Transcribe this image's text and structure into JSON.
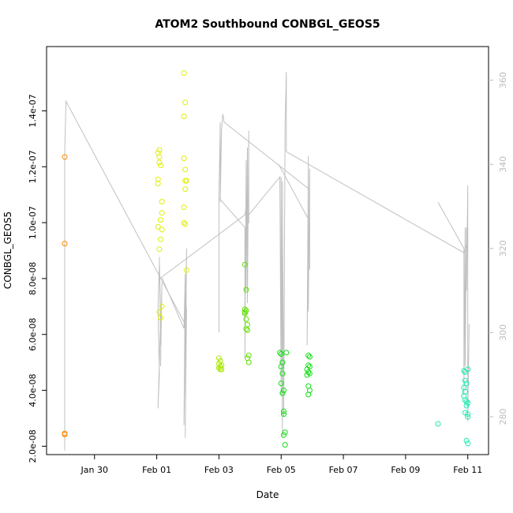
{
  "chart_data": {
    "type": "scatter",
    "title": "ATOM2 Southbound CONBGL_GEOS5",
    "xlabel": "Date",
    "ylabel": "CONBGL_GEOS5",
    "xlim": [
      "2016-01-28T11:00",
      "2016-02-11T16:00"
    ],
    "ylim": [
      1.7e-08,
      1.63e-07
    ],
    "y2lim": [
      271,
      368
    ],
    "x_ticks": [
      {
        "date": "2016-01-30",
        "label": "Jan 30"
      },
      {
        "date": "2016-02-01",
        "label": "Feb 01"
      },
      {
        "date": "2016-02-03",
        "label": "Feb 03"
      },
      {
        "date": "2016-02-05",
        "label": "Feb 05"
      },
      {
        "date": "2016-02-07",
        "label": "Feb 07"
      },
      {
        "date": "2016-02-09",
        "label": "Feb 09"
      },
      {
        "date": "2016-02-11",
        "label": "Feb 11"
      }
    ],
    "y_ticks": [
      {
        "value": 2e-08,
        "label": "2.0e-08"
      },
      {
        "value": 4e-08,
        "label": "4.0e-08"
      },
      {
        "value": 6e-08,
        "label": "6.0e-08"
      },
      {
        "value": 8e-08,
        "label": "8.0e-08"
      },
      {
        "value": 1e-07,
        "label": "1.0e-07"
      },
      {
        "value": 1.2e-07,
        "label": "1.2e-07"
      },
      {
        "value": 1.4e-07,
        "label": "1.4e-07"
      }
    ],
    "y2_ticks": [
      {
        "value": 280,
        "label": "280"
      },
      {
        "value": 300,
        "label": "300"
      },
      {
        "value": 320,
        "label": "320"
      },
      {
        "value": 340,
        "label": "340"
      },
      {
        "value": 360,
        "label": "360"
      }
    ],
    "grid": false,
    "legend": "none",
    "line_color": "#c0c0c0",
    "series": [
      {
        "color": "#ff8c00",
        "points": [
          [
            "2016-01-29T01:00",
            1.235e-07
          ],
          [
            "2016-01-29T01:00",
            9.25e-08
          ],
          [
            "2016-01-29T01:00",
            2.46e-08
          ],
          [
            "2016-01-29T01:00",
            2.42e-08
          ]
        ]
      },
      {
        "color": "#e0f000",
        "points": [
          [
            "2016-02-01T01:00",
            1.25e-07
          ],
          [
            "2016-02-01T02:00",
            1.26e-07
          ],
          [
            "2016-02-01T02:00",
            1.235e-07
          ],
          [
            "2016-02-01T02:00",
            1.215e-07
          ],
          [
            "2016-02-01T03:00",
            1.205e-07
          ],
          [
            "2016-02-01T01:00",
            1.155e-07
          ],
          [
            "2016-02-01T01:00",
            1.14e-07
          ],
          [
            "2016-02-01T04:00",
            1.075e-07
          ],
          [
            "2016-02-01T04:00",
            1.035e-07
          ],
          [
            "2016-02-01T03:00",
            1.01e-07
          ],
          [
            "2016-02-01T01:00",
            9.85e-08
          ],
          [
            "2016-02-01T04:00",
            9.75e-08
          ],
          [
            "2016-02-01T03:00",
            9.4e-08
          ],
          [
            "2016-02-01T02:00",
            9.05e-08
          ],
          [
            "2016-02-01T04:00",
            7e-08
          ],
          [
            "2016-02-01T02:00",
            6.8e-08
          ],
          [
            "2016-02-01T03:00",
            6.6e-08
          ],
          [
            "2016-02-01T21:00",
            1.535e-07
          ],
          [
            "2016-02-01T22:00",
            1.43e-07
          ],
          [
            "2016-02-01T21:00",
            1.38e-07
          ],
          [
            "2016-02-01T21:00",
            1.23e-07
          ],
          [
            "2016-02-01T22:00",
            1.19e-07
          ],
          [
            "2016-02-01T23:00",
            1.15e-07
          ],
          [
            "2016-02-01T22:00",
            1.15e-07
          ],
          [
            "2016-02-01T22:00",
            1.12e-07
          ],
          [
            "2016-02-01T21:00",
            1.055e-07
          ],
          [
            "2016-02-01T21:00",
            1e-07
          ],
          [
            "2016-02-01T22:00",
            9.95e-08
          ],
          [
            "2016-02-01T23:00",
            8.3e-08
          ]
        ]
      },
      {
        "color": "#a8e800",
        "points": [
          [
            "2016-02-03T00:00",
            5.15e-08
          ],
          [
            "2016-02-03T01:00",
            5.05e-08
          ],
          [
            "2016-02-03T00:00",
            4.95e-08
          ],
          [
            "2016-02-03T02:00",
            4.9e-08
          ],
          [
            "2016-02-03T00:00",
            4.8e-08
          ],
          [
            "2016-02-03T01:00",
            4.75e-08
          ],
          [
            "2016-02-03T02:00",
            4.75e-08
          ],
          [
            "2016-02-03T01:00",
            4.85e-08
          ]
        ]
      },
      {
        "color": "#60e000",
        "points": [
          [
            "2016-02-03T20:00",
            8.5e-08
          ],
          [
            "2016-02-03T21:00",
            7.6e-08
          ],
          [
            "2016-02-03T20:00",
            6.9e-08
          ],
          [
            "2016-02-03T21:00",
            6.85e-08
          ],
          [
            "2016-02-03T20:00",
            6.75e-08
          ],
          [
            "2016-02-03T21:00",
            6.55e-08
          ],
          [
            "2016-02-03T22:00",
            6.35e-08
          ],
          [
            "2016-02-03T21:00",
            6.2e-08
          ],
          [
            "2016-02-03T22:00",
            6.15e-08
          ],
          [
            "2016-02-03T23:00",
            5.25e-08
          ],
          [
            "2016-02-03T22:00",
            5.15e-08
          ],
          [
            "2016-02-03T23:00",
            5e-08
          ],
          [
            "2016-02-03T20:00",
            6.8e-08
          ]
        ]
      },
      {
        "color": "#10e010",
        "points": [
          [
            "2016-02-04T23:00",
            5.35e-08
          ],
          [
            "2016-02-05T00:00",
            5.3e-08
          ],
          [
            "2016-02-05T04:00",
            5.35e-08
          ],
          [
            "2016-02-05T01:00",
            5e-08
          ],
          [
            "2016-02-05T00:00",
            4.85e-08
          ],
          [
            "2016-02-05T01:00",
            4.6e-08
          ],
          [
            "2016-02-05T00:00",
            4.25e-08
          ],
          [
            "2016-02-05T02:00",
            4e-08
          ],
          [
            "2016-02-05T01:00",
            3.9e-08
          ],
          [
            "2016-02-05T02:00",
            3.25e-08
          ],
          [
            "2016-02-05T02:00",
            3.15e-08
          ],
          [
            "2016-02-05T03:00",
            2.5e-08
          ],
          [
            "2016-02-05T02:00",
            2.4e-08
          ],
          [
            "2016-02-05T03:00",
            2.05e-08
          ],
          [
            "2016-02-05T21:00",
            5.25e-08
          ],
          [
            "2016-02-05T22:00",
            5.2e-08
          ],
          [
            "2016-02-05T21:00",
            4.9e-08
          ],
          [
            "2016-02-05T22:00",
            4.85e-08
          ],
          [
            "2016-02-05T20:00",
            4.75e-08
          ],
          [
            "2016-02-05T21:00",
            4.65e-08
          ],
          [
            "2016-02-05T22:00",
            4.6e-08
          ],
          [
            "2016-02-05T20:00",
            4.55e-08
          ],
          [
            "2016-02-05T21:00",
            4.15e-08
          ],
          [
            "2016-02-05T22:00",
            4e-08
          ],
          [
            "2016-02-05T21:00",
            3.85e-08
          ]
        ]
      },
      {
        "color": "#20e8b0",
        "points": [
          [
            "2016-02-10T01:00",
            2.8e-08
          ],
          [
            "2016-02-10T21:00",
            4.7e-08
          ],
          [
            "2016-02-10T22:00",
            4.65e-08
          ],
          [
            "2016-02-11T00:00",
            4.75e-08
          ],
          [
            "2016-02-10T22:00",
            4.35e-08
          ],
          [
            "2016-02-10T23:00",
            4.25e-08
          ],
          [
            "2016-02-10T21:00",
            4.1e-08
          ],
          [
            "2016-02-10T22:00",
            3.95e-08
          ],
          [
            "2016-02-10T21:00",
            3.8e-08
          ],
          [
            "2016-02-10T22:00",
            3.65e-08
          ],
          [
            "2016-02-10T23:00",
            3.6e-08
          ],
          [
            "2016-02-11T00:00",
            3.55e-08
          ],
          [
            "2016-02-10T23:00",
            3.45e-08
          ],
          [
            "2016-02-10T22:00",
            3.2e-08
          ],
          [
            "2016-02-11T00:00",
            3.15e-08
          ],
          [
            "2016-02-11T00:00",
            3.05e-08
          ],
          [
            "2016-02-10T23:00",
            2.2e-08
          ],
          [
            "2016-02-11T00:00",
            2.1e-08
          ]
        ]
      }
    ],
    "line_series": [
      {
        "axis": "right",
        "segments": [
          [
            [
              "2016-01-29T01:00",
              272
            ],
            [
              "2016-01-29T01:00",
              343
            ],
            [
              "2016-01-29T02:00",
              355
            ],
            [
              "2016-02-01T22:00",
              302
            ],
            [
              "2016-02-01T23:00",
              305
            ]
          ],
          [
            [
              "2016-02-01T02:00",
              316
            ],
            [
              "2016-02-01T01:00",
              306
            ],
            [
              "2016-02-01T02:00",
              290
            ],
            [
              "2016-02-01T01:00",
              282
            ],
            [
              "2016-02-01T03:00",
              303
            ],
            [
              "2016-02-01T02:00",
              318
            ],
            [
              "2016-02-01T03:00",
              297
            ],
            [
              "2016-02-01T04:00",
              312
            ],
            [
              "2016-02-01T03:00",
              292
            ]
          ],
          [
            [
              "2016-02-01T04:00",
              313
            ],
            [
              "2016-02-01T21:00",
              301
            ],
            [
              "2016-02-01T22:00",
              314
            ],
            [
              "2016-02-01T21:00",
              278
            ],
            [
              "2016-02-01T23:00",
              320
            ],
            [
              "2016-02-01T22:00",
              275
            ],
            [
              "2016-02-01T23:00",
              306
            ]
          ],
          [
            [
              "2016-02-01T03:00",
              313
            ],
            [
              "2016-02-03T20:00",
              328
            ],
            [
              "2016-02-03T21:00",
              330
            ]
          ],
          [
            [
              "2016-02-03T00:00",
              300
            ],
            [
              "2016-02-03T00:00",
              332
            ],
            [
              "2016-02-03T01:00",
              350
            ],
            [
              "2016-02-03T01:00",
              331
            ],
            [
              "2016-02-03T02:00",
              348
            ],
            [
              "2016-02-03T03:00",
              352
            ],
            [
              "2016-02-03T04:00",
              350
            ],
            [
              "2016-02-05T22:00",
              334
            ]
          ],
          [
            [
              "2016-02-03T00:00",
              332
            ],
            [
              "2016-02-03T20:00",
              325
            ],
            [
              "2016-02-03T20:00",
              294
            ],
            [
              "2016-02-03T21:00",
              341
            ],
            [
              "2016-02-03T21:00",
              310
            ],
            [
              "2016-02-03T22:00",
              344
            ],
            [
              "2016-02-03T22:00",
              307
            ],
            [
              "2016-02-03T23:00",
              348
            ],
            [
              "2016-02-03T23:00",
              326
            ]
          ],
          [
            [
              "2016-02-03T23:00",
              328
            ],
            [
              "2016-02-04T23:00",
              337
            ],
            [
              "2016-02-05T00:00",
              285
            ],
            [
              "2016-02-05T00:00",
              337
            ],
            [
              "2016-02-05T01:00",
              275
            ],
            [
              "2016-02-05T01:00",
              336
            ],
            [
              "2016-02-05T02:00",
              280
            ],
            [
              "2016-02-05T03:00",
              349
            ],
            [
              "2016-02-05T04:00",
              362
            ],
            [
              "2016-02-05T04:00",
              343
            ]
          ],
          [
            [
              "2016-02-05T04:00",
              343
            ],
            [
              "2016-02-10T21:00",
              319
            ],
            [
              "2016-02-10T23:00",
              321
            ]
          ],
          [
            [
              "2016-02-04T22:00",
              340
            ],
            [
              "2016-02-05T21:00",
              327
            ],
            [
              "2016-02-05T20:00",
              297
            ],
            [
              "2016-02-05T21:00",
              342
            ],
            [
              "2016-02-05T21:00",
              305
            ],
            [
              "2016-02-05T22:00",
              339
            ],
            [
              "2016-02-05T22:00",
              315
            ]
          ],
          [
            [
              "2016-02-10T01:00",
              331
            ],
            [
              "2016-02-10T21:00",
              320
            ],
            [
              "2016-02-10T21:00",
              285
            ],
            [
              "2016-02-10T22:00",
              325
            ],
            [
              "2016-02-10T22:00",
              292
            ],
            [
              "2016-02-10T23:00",
              325
            ],
            [
              "2016-02-10T23:00",
              310
            ],
            [
              "2016-02-11T00:00",
              335
            ],
            [
              "2016-02-11T00:00",
              279
            ],
            [
              "2016-02-11T01:00",
              302
            ]
          ]
        ]
      }
    ]
  }
}
